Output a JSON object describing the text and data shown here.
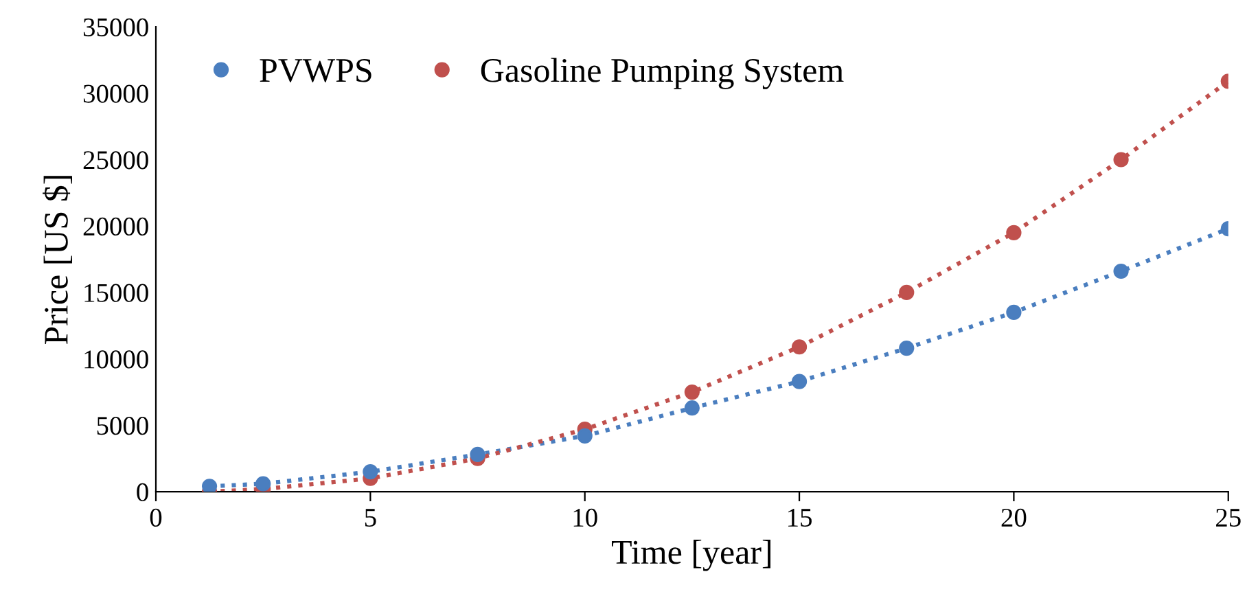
{
  "chart_data": {
    "type": "line",
    "xlabel": "Time [year]",
    "ylabel": "Price [US $]",
    "x": [
      1.25,
      2.5,
      5,
      7.5,
      10,
      12.5,
      15,
      17.5,
      20,
      22.5,
      25
    ],
    "series": [
      {
        "name": "PVWPS",
        "color": "#4a7ebf",
        "values": [
          400,
          600,
          1500,
          2800,
          4200,
          6300,
          8300,
          10800,
          13500,
          16600,
          19800
        ]
      },
      {
        "name": "Gasoline Pumping System",
        "color": "#c0504d",
        "values": [
          0,
          200,
          1000,
          2500,
          4700,
          7500,
          10900,
          15000,
          19500,
          25000,
          30900
        ]
      }
    ],
    "xlim": [
      0,
      25
    ],
    "xticks": [
      0,
      5,
      10,
      15,
      20,
      25
    ],
    "ylim": [
      0,
      35000
    ],
    "yticks": [
      0,
      5000,
      10000,
      15000,
      20000,
      25000,
      30000,
      35000
    ],
    "grid": false,
    "legend": "top left",
    "marker": "circle",
    "line_style": "dotted"
  }
}
